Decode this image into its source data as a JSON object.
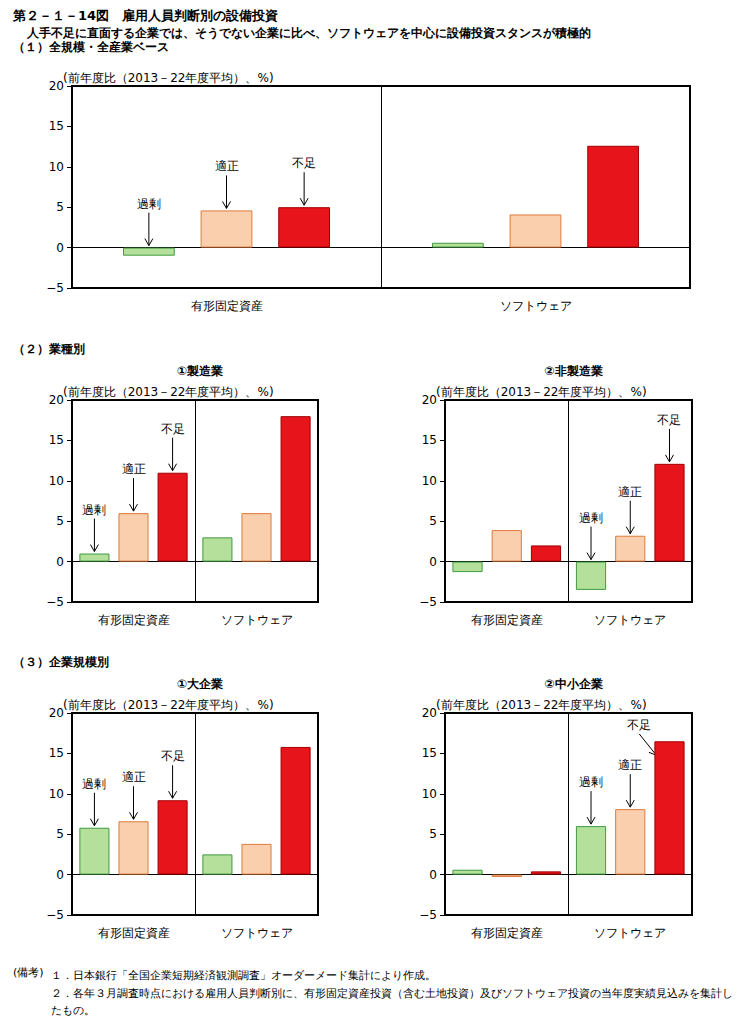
{
  "title": "第２－１－14図　雇用人員判断別の設備投資",
  "subtitle": "人手不足に直面する企業では、そうでない企業に比べ、ソフトウェアを中心に設備投資スタンスが積極的",
  "notes_label": "(備考)",
  "notes": [
    "１．日本銀行「全国企業短期経済観測調査」オーダーメード集計により作成。",
    "２．各年３月調査時点における雇用人員判断別に、有形固定資産投資（含む土地投資）及びソフトウェア投資の当年度実績見込みを集計したもの。"
  ],
  "chart_data": [
    {
      "type": "bar",
      "section": "（１）全規模・全産業ベース",
      "y_label": "(前年度比（2013－22年度平均）、%)",
      "categories": [
        "有形固定資産",
        "ソフトウェア"
      ],
      "series": [
        {
          "name": "過剰",
          "color": "#b5e09b",
          "values": [
            -1.0,
            0.6
          ]
        },
        {
          "name": "適正",
          "color": "#f9cfae",
          "values": [
            4.6,
            4.1
          ]
        },
        {
          "name": "不足",
          "color": "#e8141c",
          "values": [
            5.0,
            12.6
          ]
        }
      ],
      "annotations": [
        {
          "text": "過剰",
          "series": "過剰",
          "category": "有形固定資産"
        },
        {
          "text": "適正",
          "series": "適正",
          "category": "有形固定資産"
        },
        {
          "text": "不足",
          "series": "不足",
          "category": "有形固定資産"
        }
      ],
      "ylim": [
        -5,
        20
      ],
      "yticks": [
        {
          "value": -5,
          "label": "−5"
        },
        0,
        5,
        10,
        15,
        20
      ],
      "grid": false
    },
    {
      "type": "bar",
      "section": "（２）業種別",
      "title": "①製造業",
      "y_label": "(前年度比（2013－22年度平均）、%)",
      "categories": [
        "有形固定資産",
        "ソフトウェア"
      ],
      "series": [
        {
          "name": "過剰",
          "color": "#b5e09b",
          "values": [
            1.0,
            3.0
          ]
        },
        {
          "name": "適正",
          "color": "#f9cfae",
          "values": [
            6.0,
            6.0
          ]
        },
        {
          "name": "不足",
          "color": "#e8141c",
          "values": [
            11.0,
            18.0
          ]
        }
      ],
      "annotations": [
        {
          "text": "過剰",
          "series": "過剰",
          "category": "有形固定資産"
        },
        {
          "text": "適正",
          "series": "適正",
          "category": "有形固定資産"
        },
        {
          "text": "不足",
          "series": "不足",
          "category": "有形固定資産"
        }
      ],
      "ylim": [
        -5,
        20
      ],
      "yticks": [
        {
          "value": -5,
          "label": "−5"
        },
        0,
        5,
        10,
        15,
        20
      ],
      "grid": false
    },
    {
      "type": "bar",
      "section": "（２）業種別",
      "title": "②非製造業",
      "y_label": "(前年度比（2013－22年度平均）、%)",
      "categories": [
        "有形固定資産",
        "ソフトウェア"
      ],
      "series": [
        {
          "name": "過剰",
          "color": "#b5e09b",
          "values": [
            -1.3,
            -3.5
          ]
        },
        {
          "name": "適正",
          "color": "#f9cfae",
          "values": [
            3.9,
            3.2
          ]
        },
        {
          "name": "不足",
          "color": "#e8141c",
          "values": [
            2.0,
            12.1
          ]
        }
      ],
      "annotations": [
        {
          "text": "過剰",
          "series": "過剰",
          "category": "ソフトウェア"
        },
        {
          "text": "適正",
          "series": "適正",
          "category": "ソフトウェア"
        },
        {
          "text": "不足",
          "series": "不足",
          "category": "ソフトウェア"
        }
      ],
      "ylim": [
        -5,
        20
      ],
      "yticks": [
        {
          "value": -5,
          "label": "−5"
        },
        0,
        5,
        10,
        15,
        20
      ],
      "grid": false
    },
    {
      "type": "bar",
      "section": "（３）企業規模別",
      "title": "①大企業",
      "y_label": "(前年度比（2013－22年度平均）、%)",
      "categories": [
        "有形固定資産",
        "ソフトウェア"
      ],
      "series": [
        {
          "name": "過剰",
          "color": "#b5e09b",
          "values": [
            5.8,
            2.5
          ]
        },
        {
          "name": "適正",
          "color": "#f9cfae",
          "values": [
            6.6,
            3.8
          ]
        },
        {
          "name": "不足",
          "color": "#e8141c",
          "values": [
            9.2,
            15.8
          ]
        }
      ],
      "annotations": [
        {
          "text": "過剰",
          "series": "過剰",
          "category": "有形固定資産"
        },
        {
          "text": "適正",
          "series": "適正",
          "category": "有形固定資産"
        },
        {
          "text": "不足",
          "series": "不足",
          "category": "有形固定資産"
        }
      ],
      "ylim": [
        -5,
        20
      ],
      "yticks": [
        {
          "value": -5,
          "label": "−5"
        },
        0,
        5,
        10,
        15,
        20
      ],
      "grid": false
    },
    {
      "type": "bar",
      "section": "（３）企業規模別",
      "title": "②中小企業",
      "y_label": "(前年度比（2013－22年度平均）、%)",
      "categories": [
        "有形固定資産",
        "ソフトウェア"
      ],
      "series": [
        {
          "name": "過剰",
          "color": "#b5e09b",
          "values": [
            0.6,
            6.0
          ]
        },
        {
          "name": "適正",
          "color": "#f9cfae",
          "values": [
            -0.3,
            8.1
          ]
        },
        {
          "name": "不足",
          "color": "#e8141c",
          "values": [
            0.4,
            16.5
          ]
        }
      ],
      "annotations": [
        {
          "text": "過剰",
          "series": "過剰",
          "category": "ソフトウェア"
        },
        {
          "text": "適正",
          "series": "適正",
          "category": "ソフトウェア"
        },
        {
          "text": "不足",
          "series": "不足",
          "category": "ソフトウェア"
        }
      ],
      "ylim": [
        -5,
        20
      ],
      "yticks": [
        {
          "value": -5,
          "label": "−5"
        },
        0,
        5,
        10,
        15,
        20
      ],
      "grid": false
    }
  ]
}
